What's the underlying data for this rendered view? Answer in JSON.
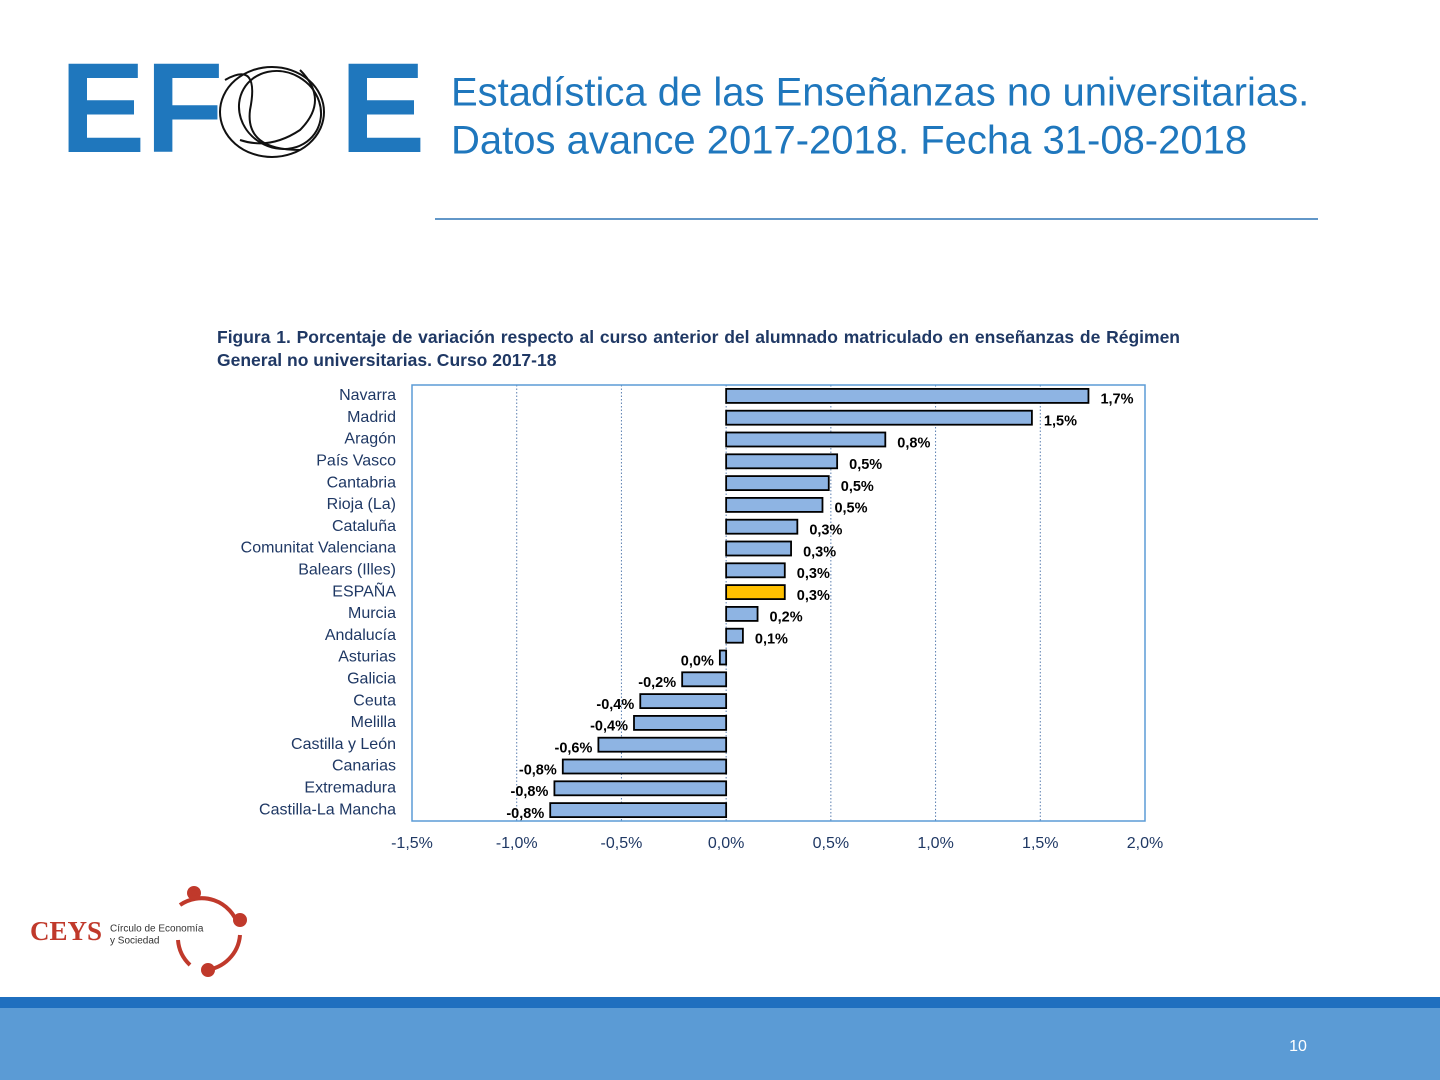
{
  "header": {
    "logo_left": "EF",
    "logo_right": "E",
    "title_line1": "Estadística de las Enseñanzas no universitarias.",
    "title_line2": "Datos avance 2017-2018. Fecha 31-08-2018"
  },
  "chart_data": {
    "type": "barh",
    "title": "Figura 1. Porcentaje de variación respecto al curso anterior del alumnado matriculado en enseñanzas de Régimen General no universitarias. Curso 2017-18",
    "categories": [
      "Navarra",
      "Madrid",
      "Aragón",
      "País Vasco",
      "Cantabria",
      "Rioja (La)",
      "Cataluña",
      "Comunitat Valenciana",
      "Balears (Illes)",
      "ESPAÑA",
      "Murcia",
      "Andalucía",
      "Asturias",
      "Galicia",
      "Ceuta",
      "Melilla",
      "Castilla y León",
      "Canarias",
      "Extremadura",
      "Castilla-La Mancha"
    ],
    "values": [
      1.73,
      1.46,
      0.76,
      0.53,
      0.49,
      0.46,
      0.34,
      0.31,
      0.28,
      0.28,
      0.15,
      0.08,
      -0.03,
      -0.21,
      -0.41,
      -0.44,
      -0.61,
      -0.78,
      -0.82,
      -0.84
    ],
    "value_labels": [
      "1,7%",
      "1,5%",
      "0,8%",
      "0,5%",
      "0,5%",
      "0,5%",
      "0,3%",
      "0,3%",
      "0,3%",
      "0,3%",
      "0,2%",
      "0,1%",
      "0,0%",
      "-0,2%",
      "-0,4%",
      "-0,4%",
      "-0,6%",
      "-0,8%",
      "-0,8%",
      "-0,8%"
    ],
    "colors": [
      "#8eb4e3",
      "#8eb4e3",
      "#8eb4e3",
      "#8eb4e3",
      "#8eb4e3",
      "#8eb4e3",
      "#8eb4e3",
      "#8eb4e3",
      "#8eb4e3",
      "#ffc000",
      "#8eb4e3",
      "#8eb4e3",
      "#8eb4e3",
      "#8eb4e3",
      "#8eb4e3",
      "#8eb4e3",
      "#8eb4e3",
      "#8eb4e3",
      "#8eb4e3",
      "#8eb4e3"
    ],
    "xlim": [
      -1.5,
      2.0
    ],
    "xticks": [
      {
        "value": -1.5,
        "label": "-1,5%"
      },
      {
        "value": -1.0,
        "label": "-1,0%"
      },
      {
        "value": -0.5,
        "label": "-0,5%"
      },
      {
        "value": 0,
        "label": "0,0%"
      },
      {
        "value": 0.5,
        "label": "0,5%"
      },
      {
        "value": 1.0,
        "label": "1,0%"
      },
      {
        "value": 1.5,
        "label": "1,5%"
      },
      {
        "value": 2.0,
        "label": "2,0%"
      }
    ],
    "grid": true
  },
  "footer": {
    "brand": "CEYS",
    "brand_line1": "Círculo de Economía",
    "brand_line2": "y Sociedad",
    "page_number": "10"
  }
}
